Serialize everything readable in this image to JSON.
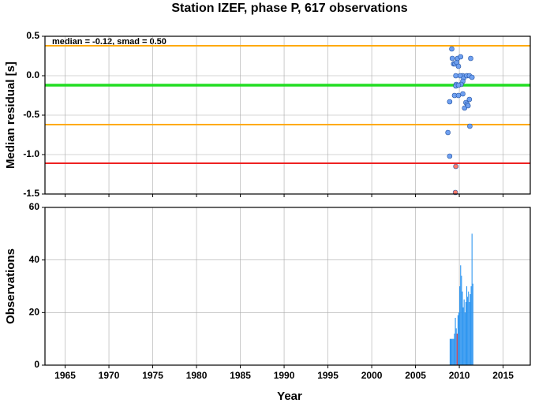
{
  "chart_data": [
    {
      "type": "scatter",
      "title": "Station IZEF, phase P, 617 observations",
      "ylabel": "Median residual [s]",
      "annotation": "median = -0.12, smad = 0.50",
      "xlim": [
        1962.7,
        2018.1
      ],
      "xticks": [
        1965,
        1970,
        1975,
        1980,
        1985,
        1990,
        1995,
        2000,
        2005,
        2010,
        2015
      ],
      "ylim": [
        -1.5,
        0.5
      ],
      "yticks": [
        {
          "value": -1.5,
          "label": "-1.5"
        },
        {
          "value": -1,
          "label": "-1.0"
        },
        -0.5,
        {
          "value": 0,
          "label": "0.0"
        },
        0.5
      ],
      "grid": true,
      "hlines": [
        {
          "value": 0.38,
          "color": "#ffaa00"
        },
        {
          "value": -0.12,
          "color": "#22dd22"
        },
        {
          "value": -0.62,
          "color": "#ffaa00"
        },
        {
          "value": -1.11,
          "color": "#ee2222"
        }
      ],
      "series": [
        {
          "color": "#6fa0f0",
          "x": [
            2009.14,
            2009.2,
            2009.35,
            2009.5,
            2009.7,
            2009.8,
            2009.9,
            2010.15,
            2010.4,
            2009.6,
            2010.1,
            2010.5,
            2010.85,
            2011.15,
            2011.45,
            2010.4,
            2010.2,
            2009.65,
            2009.6,
            2009.9,
            2009.45,
            2009.9,
            2010.4,
            2010.75,
            2008.9,
            2010.6,
            2010.9,
            2011.15,
            2011.2,
            2008.7,
            2008.9,
            2011.0,
            2011.3
          ],
          "values": [
            0.34,
            0.22,
            0.15,
            0.15,
            0.17,
            0.22,
            0.12,
            0.24,
            0.0,
            0.0,
            0.0,
            -0.03,
            0.0,
            0.0,
            -0.02,
            -0.07,
            -0.11,
            -0.11,
            -0.13,
            -0.12,
            -0.25,
            -0.25,
            -0.23,
            -0.34,
            -0.33,
            -0.41,
            -0.36,
            -0.3,
            -0.64,
            -0.72,
            -1.02,
            -0.38,
            0.22
          ]
        },
        {
          "color": "#ff7a6a",
          "x": [
            2009.6,
            2009.55
          ],
          "values": [
            -1.15,
            -1.48
          ]
        }
      ]
    },
    {
      "type": "histogram",
      "ylabel": "Observations",
      "xlabel": "Year",
      "xlim": [
        1962.7,
        2018.1
      ],
      "xticks": [
        1965,
        1970,
        1975,
        1980,
        1985,
        1990,
        1995,
        2000,
        2005,
        2010,
        2015
      ],
      "ylim": [
        0,
        60
      ],
      "yticks": [
        0,
        20,
        40,
        60
      ],
      "grid": true,
      "color": "#2f96f0",
      "highlight_color": "#ee2222",
      "highlight": [
        8
      ],
      "bins": [
        2008.9,
        2009.0,
        2009.1,
        2009.2,
        2009.3,
        2009.4,
        2009.5,
        2009.6,
        2009.7,
        2009.8,
        2009.9,
        2010.0,
        2010.1,
        2010.2,
        2010.3,
        2010.4,
        2010.5,
        2010.6,
        2010.7,
        2010.8,
        2010.9,
        2011.0,
        2011.1,
        2011.2,
        2011.3,
        2011.4,
        2011.5,
        2011.6
      ],
      "values": [
        10,
        10,
        10,
        10,
        10,
        12,
        18,
        14,
        12,
        19,
        20,
        30,
        38,
        34,
        28,
        22,
        25,
        20,
        24,
        30,
        26,
        28,
        24,
        27,
        30,
        50,
        31
      ]
    }
  ]
}
